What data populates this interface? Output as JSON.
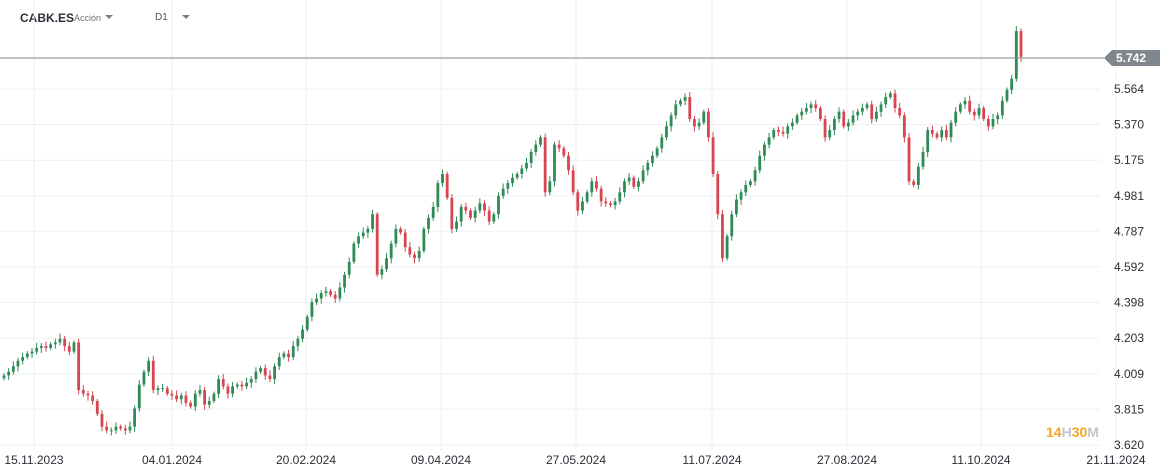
{
  "header": {
    "symbol": "CABK.ES",
    "instrument_type": "Acción",
    "timeframe": "D1"
  },
  "branding": {
    "part1": "14",
    "part2": "H",
    "part3": "30",
    "part4": "M"
  },
  "colors": {
    "up": "#2e8b57",
    "down": "#d64550",
    "price_line": "#7f868e",
    "badge": "#7f868e",
    "brand_orange": "#f5a623",
    "brand_gray": "#c3c7cc"
  },
  "chart_data": {
    "type": "candlestick",
    "title": "",
    "current_price": 5.742,
    "current_price_label": "5.742",
    "y_ticks": [
      "5.564",
      "5.370",
      "5.175",
      "4.981",
      "4.787",
      "4.592",
      "4.398",
      "4.203",
      "4.009",
      "3.815",
      "3.620"
    ],
    "y_tick_values": [
      5.564,
      5.37,
      5.175,
      4.981,
      4.787,
      4.592,
      4.398,
      4.203,
      4.009,
      3.815,
      3.62
    ],
    "x_ticks": [
      "15.11.2023",
      "04.01.2024",
      "20.02.2024",
      "09.04.2024",
      "27.05.2024",
      "11.07.2024",
      "27.08.2024",
      "11.10.2024",
      "21.11.2024"
    ],
    "ylim": [
      3.6,
      6.0
    ],
    "grid": true,
    "closes": [
      4.0,
      4.02,
      4.05,
      4.08,
      4.1,
      4.12,
      4.13,
      4.15,
      4.16,
      4.15,
      4.17,
      4.18,
      4.2,
      4.16,
      4.13,
      4.18,
      3.92,
      3.9,
      3.89,
      3.86,
      3.79,
      3.72,
      3.7,
      3.7,
      3.72,
      3.71,
      3.7,
      3.72,
      3.82,
      3.95,
      4.02,
      4.08,
      3.92,
      3.93,
      3.93,
      3.9,
      3.89,
      3.87,
      3.89,
      3.85,
      3.83,
      3.9,
      3.92,
      3.84,
      3.86,
      3.9,
      3.98,
      3.94,
      3.9,
      3.94,
      3.95,
      3.94,
      3.96,
      3.98,
      4.02,
      4.04,
      4.0,
      3.98,
      4.05,
      4.1,
      4.12,
      4.1,
      4.16,
      4.2,
      4.25,
      4.32,
      4.4,
      4.42,
      4.45,
      4.46,
      4.44,
      4.42,
      4.48,
      4.55,
      4.62,
      4.72,
      4.76,
      4.78,
      4.8,
      4.88,
      4.55,
      4.58,
      4.64,
      4.72,
      4.8,
      4.78,
      4.7,
      4.66,
      4.64,
      4.68,
      4.8,
      4.86,
      4.92,
      5.05,
      5.1,
      4.97,
      4.8,
      4.84,
      4.92,
      4.9,
      4.86,
      4.9,
      4.94,
      4.9,
      4.84,
      4.88,
      4.98,
      5.02,
      5.05,
      5.08,
      5.1,
      5.13,
      5.16,
      5.22,
      5.26,
      5.3,
      5.0,
      5.06,
      5.26,
      5.24,
      5.2,
      5.12,
      5.0,
      4.9,
      4.95,
      5.0,
      5.06,
      5.02,
      4.95,
      4.94,
      4.93,
      4.95,
      5.0,
      5.06,
      5.08,
      5.03,
      5.06,
      5.12,
      5.16,
      5.2,
      5.24,
      5.3,
      5.36,
      5.42,
      5.48,
      5.5,
      5.52,
      5.4,
      5.36,
      5.38,
      5.44,
      5.3,
      5.1,
      4.88,
      4.64,
      4.76,
      4.88,
      4.96,
      5.0,
      5.04,
      5.06,
      5.12,
      5.2,
      5.26,
      5.3,
      5.34,
      5.33,
      5.32,
      5.36,
      5.38,
      5.42,
      5.44,
      5.46,
      5.48,
      5.46,
      5.4,
      5.3,
      5.34,
      5.4,
      5.44,
      5.36,
      5.38,
      5.42,
      5.44,
      5.46,
      5.48,
      5.4,
      5.44,
      5.48,
      5.52,
      5.54,
      5.46,
      5.42,
      5.3,
      5.06,
      5.04,
      5.14,
      5.22,
      5.34,
      5.32,
      5.3,
      5.34,
      5.3,
      5.38,
      5.44,
      5.48,
      5.5,
      5.44,
      5.42,
      5.46,
      5.4,
      5.36,
      5.4,
      5.42,
      5.5,
      5.56,
      5.62,
      5.88,
      5.74
    ]
  }
}
